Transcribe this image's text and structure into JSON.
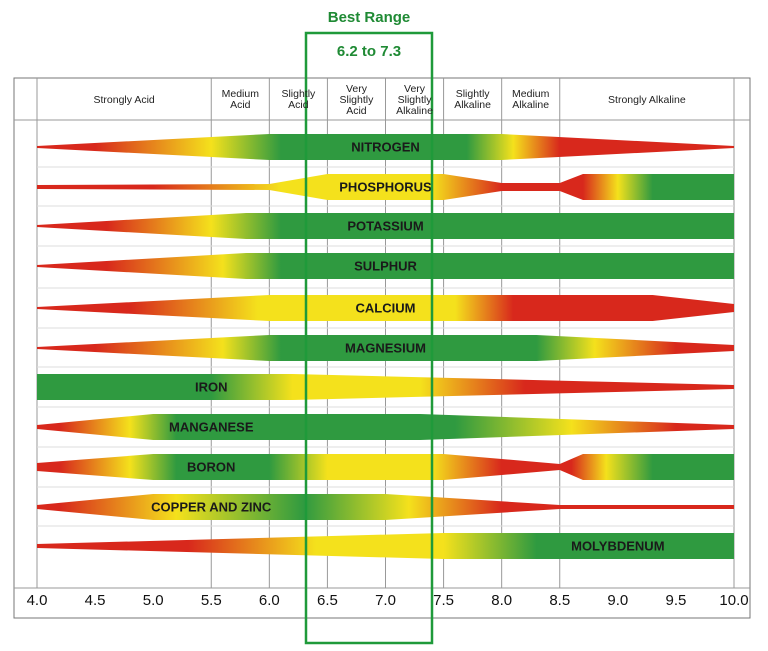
{
  "header": {
    "title": "Best Range",
    "subtitle": "6.2 to 7.3"
  },
  "zones": [
    "Strongly Acid",
    "Medium Acid",
    "Slightly Acid",
    "Very Slightly Acid",
    "Very Slightly Alkaline",
    "Slightly Alkaline",
    "Medium Alkaline",
    "Strongly Alkaline"
  ],
  "nutrients": [
    "NITROGEN",
    "PHOSPHORUS",
    "POTASSIUM",
    "SULPHUR",
    "CALCIUM",
    "MAGNESIUM",
    "IRON",
    "MANGANESE",
    "BORON",
    "COPPER AND ZINC",
    "MOLYBDENUM"
  ],
  "axis_labels": [
    "4.0",
    "4.5",
    "5.0",
    "5.5",
    "6.0",
    "6.5",
    "7.0",
    "7.5",
    "8.0",
    "8.5",
    "9.0",
    "9.5",
    "10.0"
  ]
}
